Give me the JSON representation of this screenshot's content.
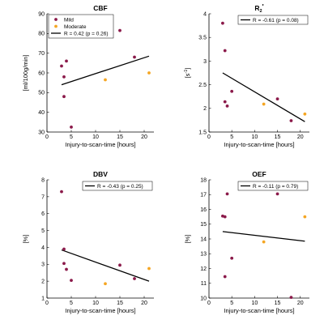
{
  "chart_data": [
    {
      "type": "scatter",
      "title": "CBF",
      "title_sub": "",
      "title_sup": "",
      "xlabel": "Injury-to-scan-time [hours]",
      "ylabel": "[ml/100g/min]",
      "xlim": [
        0,
        22
      ],
      "ylim": [
        30,
        90
      ],
      "xticks": [
        0,
        5,
        10,
        15,
        20
      ],
      "yticks": [
        30,
        40,
        50,
        60,
        70,
        80,
        90
      ],
      "series": [
        {
          "name": "Mild",
          "color": "#8b1a4a",
          "points": [
            [
              3,
              63.5
            ],
            [
              3.5,
              58
            ],
            [
              3.5,
              48
            ],
            [
              4,
              66
            ],
            [
              5,
              32.5
            ],
            [
              15,
              81.5
            ],
            [
              18,
              68
            ]
          ]
        },
        {
          "name": "Moderate",
          "color": "#f5a623",
          "points": [
            [
              12,
              56.5
            ],
            [
              21,
              60
            ]
          ]
        }
      ],
      "fit": {
        "label": "R = 0.42 (p = 0.26)",
        "x": [
          3,
          21
        ],
        "y": [
          54,
          68.5
        ]
      },
      "legend": "top-left"
    },
    {
      "type": "scatter",
      "title": "R",
      "title_sub": "2",
      "title_sup": "'",
      "xlabel": "Injury-to-scan-time [hours]",
      "ylabel": "[s",
      "ylabel_sup": "-1",
      "ylabel_end": "]",
      "xlim": [
        0,
        22
      ],
      "ylim": [
        1.5,
        4
      ],
      "xticks": [
        0,
        5,
        10,
        15,
        20
      ],
      "yticks": [
        1.5,
        2,
        2.5,
        3,
        3.5,
        4
      ],
      "series": [
        {
          "name": "Mild",
          "color": "#8b1a4a",
          "points": [
            [
              3,
              3.8
            ],
            [
              3.5,
              3.22
            ],
            [
              3.5,
              2.14
            ],
            [
              4,
              2.05
            ],
            [
              5,
              2.36
            ],
            [
              15,
              2.2
            ],
            [
              18,
              1.74
            ]
          ]
        },
        {
          "name": "Moderate",
          "color": "#f5a623",
          "points": [
            [
              12,
              2.09
            ],
            [
              21,
              1.88
            ]
          ]
        }
      ],
      "fit": {
        "label": "R = -0.61 (p = 0.08)",
        "x": [
          3,
          21
        ],
        "y": [
          2.75,
          1.72
        ]
      },
      "legend": "top-right"
    },
    {
      "type": "scatter",
      "title": "DBV",
      "title_sub": "",
      "title_sup": "",
      "xlabel": "Injury-to-scan-time [hours]",
      "ylabel": "[%]",
      "xlim": [
        0,
        22
      ],
      "ylim": [
        1,
        8
      ],
      "xticks": [
        0,
        5,
        10,
        15,
        20
      ],
      "yticks": [
        1,
        2,
        3,
        4,
        5,
        6,
        7,
        8
      ],
      "series": [
        {
          "name": "Mild",
          "color": "#8b1a4a",
          "points": [
            [
              3,
              7.3
            ],
            [
              3.5,
              3.9
            ],
            [
              3.5,
              3.05
            ],
            [
              4,
              2.7
            ],
            [
              5,
              2.05
            ],
            [
              15,
              2.95
            ],
            [
              18,
              2.15
            ]
          ]
        },
        {
          "name": "Moderate",
          "color": "#f5a623",
          "points": [
            [
              12,
              1.85
            ],
            [
              21,
              2.75
            ]
          ]
        }
      ],
      "fit": {
        "label": "R = -0.43 (p = 0.25)",
        "x": [
          3,
          21
        ],
        "y": [
          3.85,
          2.0
        ]
      },
      "legend": "top-right"
    },
    {
      "type": "scatter",
      "title": "OEF",
      "title_sub": "",
      "title_sup": "",
      "xlabel": "Injury-to-scan-time [hours]",
      "ylabel": "[%]",
      "xlim": [
        0,
        22
      ],
      "ylim": [
        10,
        18
      ],
      "xticks": [
        0,
        5,
        10,
        15,
        20
      ],
      "yticks": [
        10,
        11,
        12,
        13,
        14,
        15,
        16,
        17,
        18
      ],
      "series": [
        {
          "name": "Mild",
          "color": "#8b1a4a",
          "points": [
            [
              3,
              15.55
            ],
            [
              3.5,
              15.5
            ],
            [
              3.5,
              11.45
            ],
            [
              4,
              17.05
            ],
            [
              5,
              12.7
            ],
            [
              15,
              17.05
            ],
            [
              18,
              10.05
            ]
          ]
        },
        {
          "name": "Moderate",
          "color": "#f5a623",
          "points": [
            [
              12,
              13.8
            ],
            [
              21,
              15.5
            ]
          ]
        }
      ],
      "fit": {
        "label": "R = -0.11 (p = 0.79)",
        "x": [
          3,
          21
        ],
        "y": [
          14.5,
          13.85
        ]
      },
      "legend": "top-right"
    }
  ]
}
